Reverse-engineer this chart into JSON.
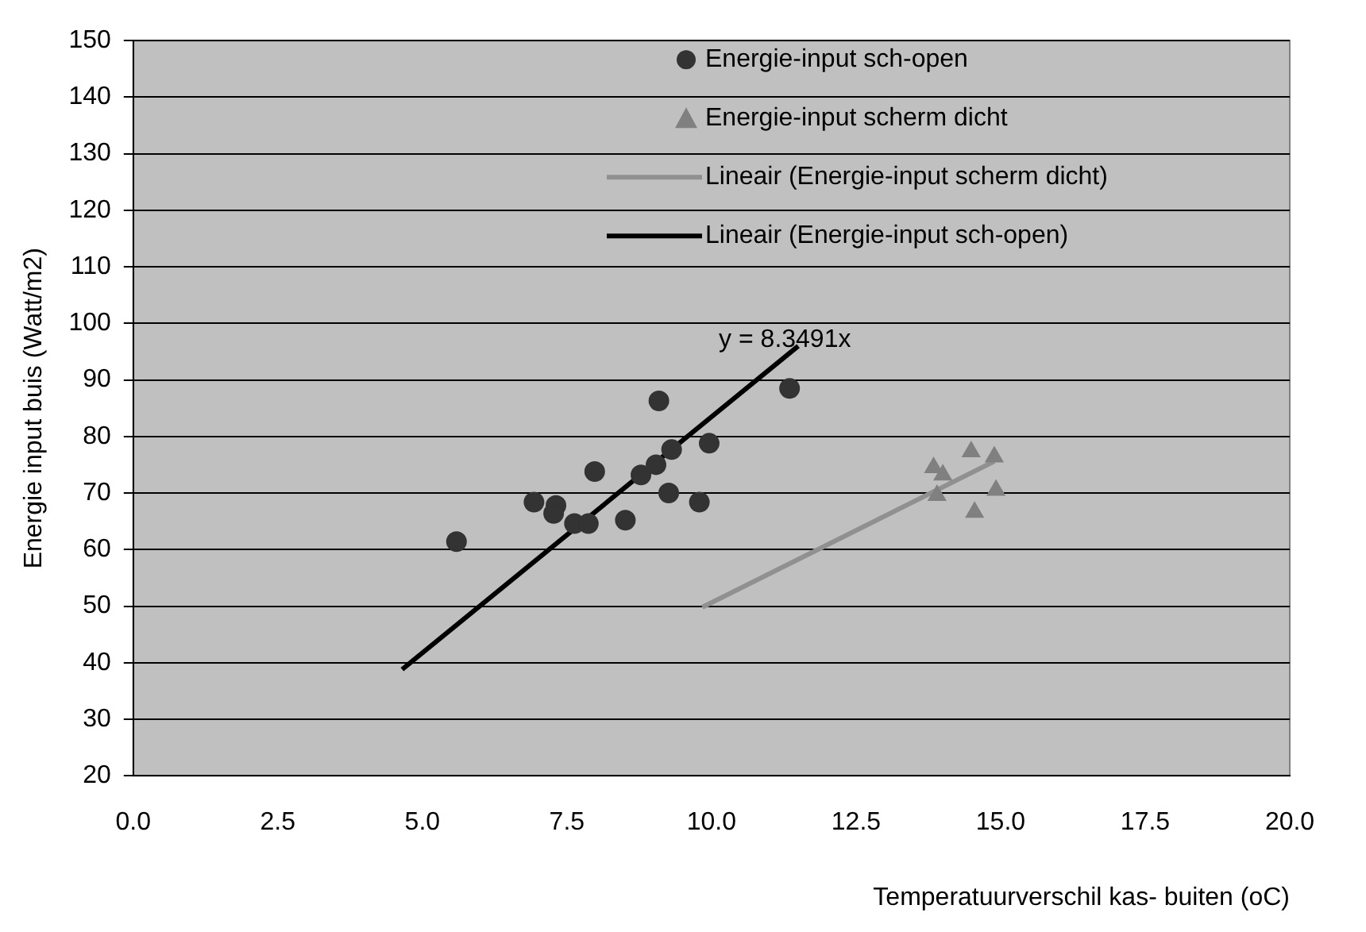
{
  "chart_data": {
    "type": "scatter",
    "xlabel": "Temperatuurverschil kas- buiten (oC)",
    "ylabel": "Energie input buis (Watt/m2)",
    "xlim": [
      0,
      20
    ],
    "xticks": [
      {
        "value": 0,
        "label": "0.0"
      },
      {
        "value": 2.5,
        "label": "2.5"
      },
      {
        "value": 5,
        "label": "5.0"
      },
      {
        "value": 7.5,
        "label": "7.5"
      },
      {
        "value": 10,
        "label": "10.0"
      },
      {
        "value": 12.5,
        "label": "12.5"
      },
      {
        "value": 15,
        "label": "15.0"
      },
      {
        "value": 17.5,
        "label": "17.5"
      },
      {
        "value": 20,
        "label": "20.0"
      }
    ],
    "ylim": [
      20,
      150
    ],
    "yticks": [
      20,
      30,
      40,
      50,
      60,
      70,
      80,
      90,
      100,
      110,
      120,
      130,
      140,
      150
    ],
    "grid": "y",
    "legend": "top right",
    "annotations": [
      {
        "text": "y = 8.3491x",
        "x": 11.5,
        "y": 96
      }
    ],
    "series": [
      {
        "name": "Energie-input sch-open",
        "marker": "circle",
        "color": "#333333",
        "x": [
          5.59,
          6.93,
          7.31,
          7.27,
          7.98,
          7.63,
          7.87,
          8.51,
          8.78,
          9.04,
          9.31,
          9.09,
          9.26,
          9.79,
          9.96,
          11.35
        ],
        "values": [
          61.4,
          68.4,
          67.8,
          66.4,
          73.8,
          64.6,
          64.6,
          65.2,
          73.2,
          75.0,
          77.7,
          86.3,
          70.0,
          68.4,
          78.8,
          88.5
        ]
      },
      {
        "name": "Energie-input scherm dicht",
        "marker": "triangle",
        "color": "#808080",
        "x": [
          13.84,
          14.0,
          13.9,
          14.49,
          14.89,
          14.92,
          14.55
        ],
        "values": [
          74.5,
          73.2,
          69.6,
          77.3,
          76.4,
          70.5,
          66.6
        ]
      },
      {
        "name": "Lineair (Energie-input scherm dicht)",
        "type": "line",
        "marker": "none",
        "color": "#909090",
        "x": [
          9.84,
          14.89
        ],
        "values": [
          49.8,
          75.6
        ]
      },
      {
        "name": "Lineair (Energie-input sch-open)",
        "type": "line",
        "marker": "none",
        "color": "#000000",
        "x": [
          4.65,
          11.5
        ],
        "values": [
          38.8,
          96.0
        ]
      }
    ]
  }
}
